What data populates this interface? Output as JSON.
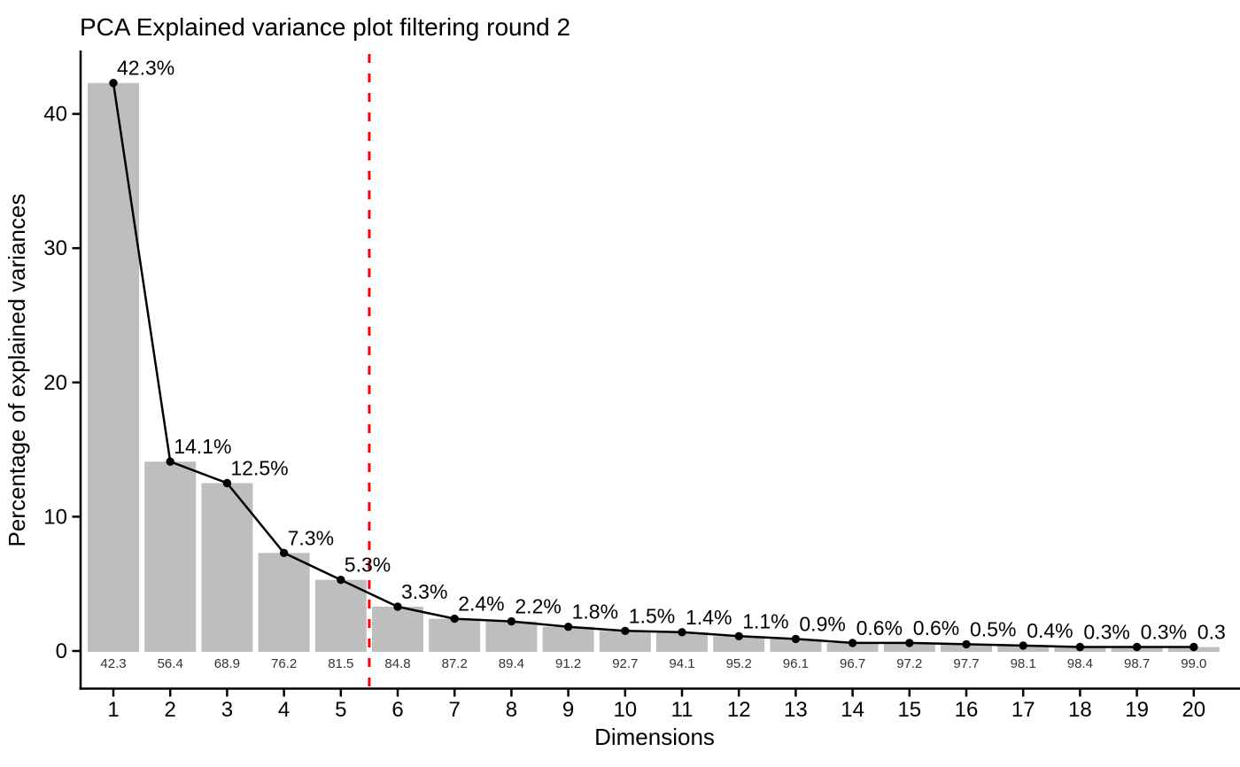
{
  "chart_data": {
    "type": "bar",
    "subtype": "scree-plot-bar-with-line-and-points",
    "title": "PCA Explained variance plot filtering round 2",
    "xlabel": "Dimensions",
    "ylabel": "Percentage of explained variances",
    "categories": [
      1,
      2,
      3,
      4,
      5,
      6,
      7,
      8,
      9,
      10,
      11,
      12,
      13,
      14,
      15,
      16,
      17,
      18,
      19,
      20
    ],
    "x_tick_labels": [
      "1",
      "2",
      "3",
      "4",
      "5",
      "6",
      "7",
      "8",
      "9",
      "10",
      "11",
      "12",
      "13",
      "14",
      "15",
      "16",
      "17",
      "18",
      "19",
      "20"
    ],
    "y_tick_labels": [
      "0",
      "10",
      "20",
      "30",
      "40"
    ],
    "series": [
      {
        "name": "percentage-of-explained-variance",
        "render": "bar+line+point",
        "values": [
          42.3,
          14.1,
          12.5,
          7.3,
          5.3,
          3.3,
          2.4,
          2.2,
          1.8,
          1.5,
          1.4,
          1.1,
          0.9,
          0.6,
          0.6,
          0.5,
          0.4,
          0.3,
          0.3,
          0.3
        ],
        "point_labels": [
          "42.3%",
          "14.1%",
          "12.5%",
          "7.3%",
          "5.3%",
          "3.3%",
          "2.4%",
          "2.2%",
          "1.8%",
          "1.5%",
          "1.4%",
          "1.1%",
          "0.9%",
          "0.6%",
          "0.6%",
          "0.5%",
          "0.4%",
          "0.3%",
          "0.3%",
          "0.3"
        ]
      },
      {
        "name": "cumulative-percentage-labels",
        "render": "text-under-bars",
        "values": [
          42.3,
          56.4,
          68.9,
          76.2,
          81.5,
          84.8,
          87.2,
          89.4,
          91.2,
          92.7,
          94.1,
          95.2,
          96.1,
          96.7,
          97.2,
          97.7,
          98.1,
          98.4,
          98.7,
          99.0
        ],
        "labels": [
          "42.3",
          "56.4",
          "68.9",
          "76.2",
          "81.5",
          "84.8",
          "87.2",
          "89.4",
          "91.2",
          "92.7",
          "94.1",
          "95.2",
          "96.1",
          "96.7",
          "97.2",
          "97.7",
          "98.1",
          "98.4",
          "98.7",
          "99.0"
        ]
      }
    ],
    "reference_line": {
      "axis": "x",
      "value": 5.5,
      "color": "#FF0000",
      "style": "dashed"
    },
    "ylim": [
      -2.8,
      44.6
    ],
    "xlim": [
      0.42,
      20.8
    ],
    "grid": false,
    "legend": "none",
    "colors": {
      "bar_fill": "#BEBEBE",
      "line": "#000000",
      "point": "#000000",
      "axis": "#000000",
      "text": "#000000",
      "background": "#FFFFFF"
    }
  }
}
